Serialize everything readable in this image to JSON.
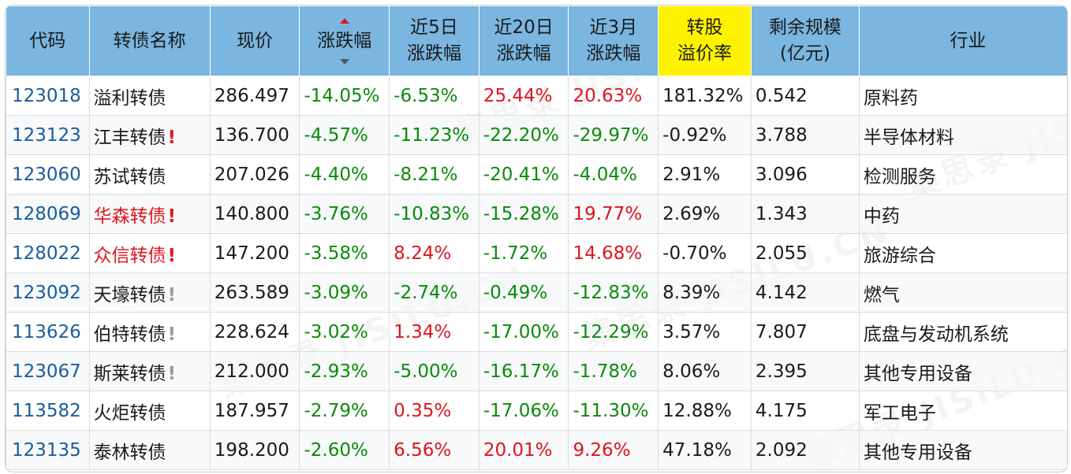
{
  "headers": {
    "code": "代码",
    "name": "转债名称",
    "price": "现价",
    "chg": "涨跌幅",
    "d5_1": "近5日",
    "d5_2": "涨跌幅",
    "d20_1": "近20日",
    "d20_2": "涨跌幅",
    "m3_1": "近3月",
    "m3_2": "涨跌幅",
    "prem_1": "转股",
    "prem_2": "溢价率",
    "size_1": "剩余规模",
    "size_2": "(亿元)",
    "industry": "行业"
  },
  "sort": {
    "column": "涨跌幅",
    "up_icon": "sort-asc-icon",
    "down_icon": "sort-desc-icon",
    "active_color": "#e0141e"
  },
  "colors": {
    "header_bg": "#7ab6e0",
    "highlight_header": "#fff200",
    "up": "#e0141e",
    "down": "#0a8a0a",
    "code": "#1a5c9c"
  },
  "watermark": "集思录 JISILU.CN",
  "rows": [
    {
      "code": "123018",
      "name": "溢利转债",
      "flag": "",
      "name_color": "normal",
      "price": "286.497",
      "chg": "-14.05%",
      "chg_dir": "down",
      "d5": "-6.53%",
      "d5_dir": "down",
      "d20": "25.44%",
      "d20_dir": "up",
      "m3": "20.63%",
      "m3_dir": "up",
      "prem": "181.32%",
      "size": "0.542",
      "industry": "原料药"
    },
    {
      "code": "123123",
      "name": "江丰转债",
      "flag": "!",
      "flag_color": "red",
      "name_color": "normal",
      "price": "136.700",
      "chg": "-4.57%",
      "chg_dir": "down",
      "d5": "-11.23%",
      "d5_dir": "down",
      "d20": "-22.20%",
      "d20_dir": "down",
      "m3": "-29.97%",
      "m3_dir": "down",
      "prem": "-0.92%",
      "size": "3.788",
      "industry": "半导体材料"
    },
    {
      "code": "123060",
      "name": "苏试转债",
      "flag": "",
      "name_color": "normal",
      "price": "207.026",
      "chg": "-4.40%",
      "chg_dir": "down",
      "d5": "-8.21%",
      "d5_dir": "down",
      "d20": "-20.41%",
      "d20_dir": "down",
      "m3": "-4.04%",
      "m3_dir": "down",
      "prem": "2.91%",
      "size": "3.096",
      "industry": "检测服务"
    },
    {
      "code": "128069",
      "name": "华森转债",
      "flag": "!",
      "flag_color": "red",
      "name_color": "red",
      "price": "140.800",
      "chg": "-3.76%",
      "chg_dir": "down",
      "d5": "-10.83%",
      "d5_dir": "down",
      "d20": "-15.28%",
      "d20_dir": "down",
      "m3": "19.77%",
      "m3_dir": "up",
      "prem": "2.69%",
      "size": "1.343",
      "industry": "中药"
    },
    {
      "code": "128022",
      "name": "众信转债",
      "flag": "!",
      "flag_color": "red",
      "name_color": "red",
      "price": "147.200",
      "chg": "-3.58%",
      "chg_dir": "down",
      "d5": "8.24%",
      "d5_dir": "up",
      "d20": "-1.72%",
      "d20_dir": "down",
      "m3": "14.68%",
      "m3_dir": "up",
      "prem": "-0.70%",
      "size": "2.055",
      "industry": "旅游综合"
    },
    {
      "code": "123092",
      "name": "天壕转债",
      "flag": "!",
      "flag_color": "gray",
      "name_color": "normal",
      "price": "263.589",
      "chg": "-3.09%",
      "chg_dir": "down",
      "d5": "-2.74%",
      "d5_dir": "down",
      "d20": "-0.49%",
      "d20_dir": "down",
      "m3": "-12.83%",
      "m3_dir": "down",
      "prem": "8.39%",
      "size": "4.142",
      "industry": "燃气"
    },
    {
      "code": "113626",
      "name": "伯特转债",
      "flag": "!",
      "flag_color": "gray",
      "name_color": "normal",
      "price": "228.624",
      "chg": "-3.02%",
      "chg_dir": "down",
      "d5": "1.34%",
      "d5_dir": "up",
      "d20": "-17.00%",
      "d20_dir": "down",
      "m3": "-12.29%",
      "m3_dir": "down",
      "prem": "3.57%",
      "size": "7.807",
      "industry": "底盘与发动机系统"
    },
    {
      "code": "123067",
      "name": "斯莱转债",
      "flag": "!",
      "flag_color": "gray",
      "name_color": "normal",
      "price": "212.000",
      "chg": "-2.93%",
      "chg_dir": "down",
      "d5": "-5.00%",
      "d5_dir": "down",
      "d20": "-16.17%",
      "d20_dir": "down",
      "m3": "-1.78%",
      "m3_dir": "down",
      "prem": "8.06%",
      "size": "2.395",
      "industry": "其他专用设备"
    },
    {
      "code": "113582",
      "name": "火炬转债",
      "flag": "",
      "name_color": "normal",
      "price": "187.957",
      "chg": "-2.79%",
      "chg_dir": "down",
      "d5": "0.35%",
      "d5_dir": "up",
      "d20": "-17.06%",
      "d20_dir": "down",
      "m3": "-11.30%",
      "m3_dir": "down",
      "prem": "12.88%",
      "size": "4.175",
      "industry": "军工电子"
    },
    {
      "code": "123135",
      "name": "泰林转债",
      "flag": "",
      "name_color": "normal",
      "price": "198.200",
      "chg": "-2.60%",
      "chg_dir": "down",
      "d5": "6.56%",
      "d5_dir": "up",
      "d20": "20.01%",
      "d20_dir": "up",
      "m3": "9.26%",
      "m3_dir": "up",
      "prem": "47.18%",
      "size": "2.092",
      "industry": "其他专用设备"
    }
  ]
}
